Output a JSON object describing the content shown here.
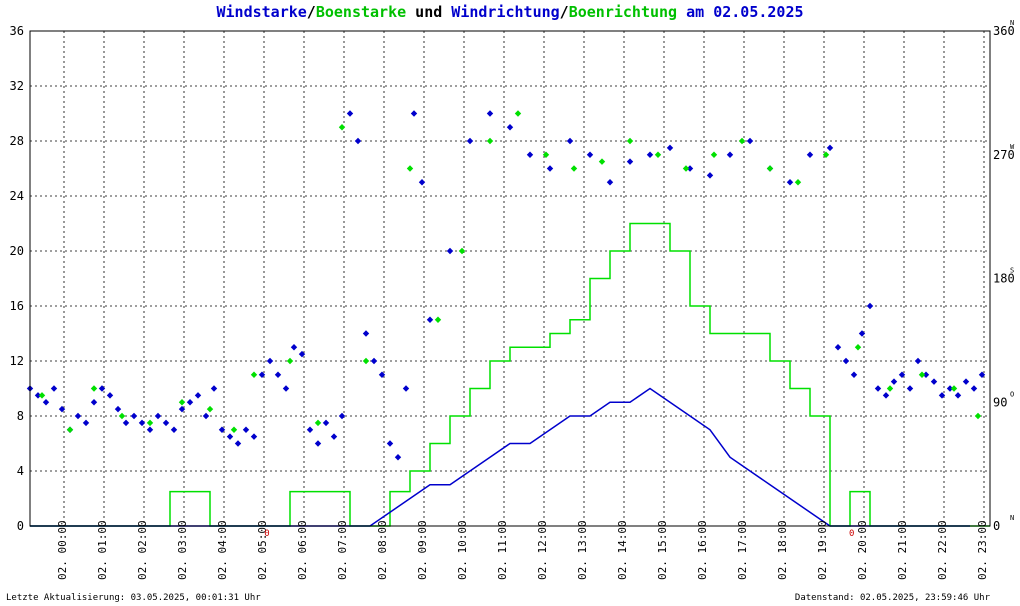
{
  "title": {
    "t1": "Windstarke",
    "s1": "/",
    "t2": "Boenstarke",
    "t3": " und ",
    "t4": "Windrichtung",
    "s2": "/",
    "t5": "Boenrichtung",
    "t6": " am 02.05.2025"
  },
  "footer": {
    "left": "Letzte Aktualisierung: 03.05.2025, 00:01:31 Uhr",
    "right": "Datenstand: 02.05.2025, 23:59:46 Uhr"
  },
  "colors": {
    "wind": "#0000cc",
    "gust": "#00e000",
    "grid": "#000000",
    "accent": "#cc0000"
  },
  "chart_data": {
    "type": "line",
    "x_tick_labels": [
      "02. 00:00",
      "02. 01:00",
      "02. 02:00",
      "02. 03:00",
      "02. 04:00",
      "02. 05:00",
      "02. 06:00",
      "02. 07:00",
      "02. 08:00",
      "02. 09:00",
      "02. 10:00",
      "02. 11:00",
      "02. 12:00",
      "02. 13:00",
      "02. 14:00",
      "02. 15:00",
      "02. 16:00",
      "02. 17:00",
      "02. 18:00",
      "02. 19:00",
      "02. 20:00",
      "02. 21:00",
      "02. 22:00",
      "02. 23:00"
    ],
    "xlim": [
      0,
      24
    ],
    "ylim_left": [
      0,
      36
    ],
    "y_ticks_left": [
      "0",
      "4",
      "8",
      "12",
      "16",
      "20",
      "24",
      "28",
      "32",
      "36"
    ],
    "ylim_right": [
      0,
      360
    ],
    "y_ticks_right": [
      "0",
      "90",
      "180",
      "270",
      "360"
    ],
    "compass_labels": [
      "N",
      "O",
      "S",
      "W",
      "N"
    ],
    "grid": true,
    "series": [
      {
        "name": "Windstarke",
        "kind": "line",
        "x": [
          0,
          0.5,
          1,
          1.5,
          2,
          2.5,
          3,
          3.5,
          4,
          4.5,
          5,
          5.5,
          6,
          6.5,
          7,
          7.5,
          8,
          8.5,
          9,
          9.5,
          10,
          10.5,
          11,
          11.5,
          12,
          12.5,
          13,
          13.5,
          14,
          14.5,
          15,
          15.5,
          16,
          16.5,
          17,
          17.5,
          18,
          18.5,
          19,
          19.5,
          20,
          20.5,
          21,
          21.5,
          22,
          22.5,
          23,
          23.5
        ],
        "values": [
          0,
          0,
          0,
          0,
          0,
          0,
          0,
          0,
          0,
          0,
          0,
          0,
          0,
          0,
          0,
          0,
          0,
          0,
          1,
          2,
          3,
          3,
          4,
          5,
          6,
          6,
          7,
          8,
          8,
          9,
          9,
          10,
          9,
          8,
          7,
          5,
          4,
          3,
          2,
          1,
          0,
          0,
          0,
          0,
          0,
          0,
          0,
          0
        ]
      },
      {
        "name": "Boenstarke",
        "kind": "line",
        "x": [
          0,
          0.5,
          1,
          1.5,
          2,
          2.5,
          3,
          3.5,
          4,
          4.5,
          5,
          5.5,
          6,
          6.5,
          7,
          7.5,
          8,
          8.5,
          9,
          9.5,
          10,
          10.5,
          11,
          11.5,
          12,
          12.5,
          13,
          13.5,
          14,
          14.5,
          15,
          15.5,
          16,
          16.5,
          17,
          17.5,
          18,
          18.5,
          19,
          19.5,
          20,
          20.5,
          21,
          21.5,
          22,
          22.5,
          23,
          23.5
        ],
        "values": [
          0,
          0,
          0,
          0,
          0,
          0,
          0,
          2.5,
          2.5,
          0,
          0,
          0,
          0,
          2.5,
          2.5,
          2.5,
          0,
          0,
          2.5,
          4,
          6,
          8,
          10,
          12,
          13,
          13,
          14,
          15,
          18,
          20,
          22,
          22,
          20,
          16,
          14,
          14,
          14,
          12,
          10,
          8,
          0,
          2.5,
          0,
          0,
          0,
          0,
          0,
          0
        ]
      },
      {
        "name": "Windrichtung",
        "kind": "scatter",
        "x": [
          0,
          0.2,
          0.4,
          0.6,
          0.8,
          1,
          1.2,
          1.4,
          1.6,
          1.8,
          2,
          2.2,
          2.4,
          2.6,
          2.8,
          3,
          3.2,
          3.4,
          3.6,
          3.8,
          4,
          4.2,
          4.4,
          4.6,
          4.8,
          5,
          5.2,
          5.4,
          5.6,
          5.8,
          6,
          6.2,
          6.4,
          6.6,
          6.8,
          7,
          7.2,
          7.4,
          7.6,
          7.8,
          8,
          8.2,
          8.4,
          8.6,
          8.8,
          9,
          9.2,
          9.4,
          9.6,
          9.8,
          10,
          10.5,
          11,
          11.5,
          12,
          12.5,
          13,
          13.5,
          14,
          14.5,
          15,
          15.5,
          16,
          16.5,
          17,
          17.5,
          18,
          18.5,
          19,
          19.5,
          20,
          20.2,
          20.4,
          20.6,
          20.8,
          21,
          21.2,
          21.4,
          21.6,
          21.8,
          22,
          22.2,
          22.4,
          22.6,
          22.8,
          23,
          23.2,
          23.4,
          23.6,
          23.8
        ],
        "values": [
          100,
          95,
          90,
          100,
          85,
          70,
          80,
          75,
          90,
          100,
          95,
          85,
          75,
          80,
          75,
          70,
          80,
          75,
          70,
          85,
          90,
          95,
          80,
          100,
          70,
          65,
          60,
          70,
          65,
          110,
          120,
          110,
          100,
          130,
          125,
          70,
          60,
          75,
          65,
          80,
          300,
          280,
          140,
          120,
          110,
          60,
          50,
          100,
          300,
          250,
          150,
          200,
          280,
          300,
          290,
          270,
          260,
          280,
          270,
          250,
          265,
          270,
          275,
          260,
          255,
          270,
          280,
          260,
          250,
          270,
          275,
          130,
          120,
          110,
          140,
          160,
          100,
          95,
          105,
          110,
          100,
          120,
          110,
          105,
          95,
          100,
          95,
          105,
          100,
          110
        ]
      },
      {
        "name": "Boenrichtung",
        "kind": "scatter",
        "x": [
          0.3,
          1,
          1.6,
          2.3,
          3,
          3.8,
          4.5,
          5.1,
          5.6,
          6.5,
          7.2,
          7.8,
          8.4,
          9.5,
          10.2,
          10.8,
          11.5,
          12.2,
          12.9,
          13.6,
          14.3,
          15,
          15.7,
          16.4,
          17.1,
          17.8,
          18.5,
          19.2,
          19.9,
          20.7,
          21.5,
          22.3,
          23.1,
          23.7
        ],
        "values": [
          95,
          70,
          100,
          80,
          75,
          90,
          85,
          70,
          110,
          120,
          75,
          290,
          120,
          260,
          150,
          200,
          280,
          300,
          270,
          260,
          265,
          280,
          270,
          260,
          270,
          280,
          260,
          250,
          270,
          130,
          100,
          110,
          100,
          80
        ]
      }
    ],
    "annotations": [
      "N",
      "N",
      "O",
      "S",
      "W",
      "N"
    ]
  }
}
